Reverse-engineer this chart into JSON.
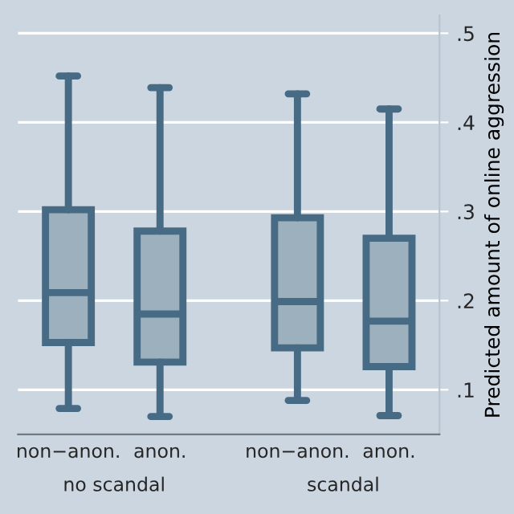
{
  "chart_data": {
    "type": "box",
    "ylabel": "Predicted amount of online aggression",
    "categories": [
      "non−anon.",
      "anon.",
      "non−anon.",
      "anon."
    ],
    "boxes": [
      {
        "low": 0.079,
        "q1": 0.153,
        "median": 0.209,
        "q3": 0.302,
        "high": 0.452
      },
      {
        "low": 0.07,
        "q1": 0.131,
        "median": 0.185,
        "q3": 0.278,
        "high": 0.439
      },
      {
        "low": 0.088,
        "q1": 0.147,
        "median": 0.199,
        "q3": 0.293,
        "high": 0.432
      },
      {
        "low": 0.071,
        "q1": 0.126,
        "median": 0.177,
        "q3": 0.27,
        "high": 0.415
      }
    ],
    "color": "#476b85",
    "ylim": [
      0.05,
      0.52
    ],
    "yticks": [
      {
        "value": 0.1,
        "label": ".1"
      },
      {
        "value": 0.2,
        "label": ".2"
      },
      {
        "value": 0.3,
        "label": ".3"
      },
      {
        "value": 0.4,
        "label": ".4"
      },
      {
        "value": 0.5,
        "label": ".5"
      }
    ],
    "grid": "y",
    "annotations": [
      "no scandal",
      "scandal"
    ]
  }
}
